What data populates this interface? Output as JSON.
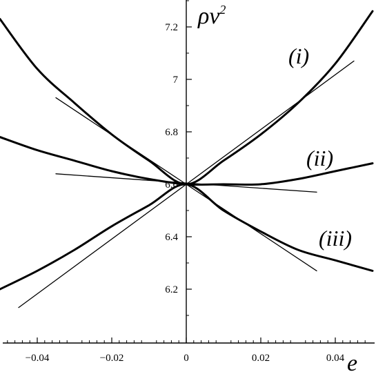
{
  "chart_data": {
    "type": "line",
    "xlabel": "e",
    "ylabel": "ρv",
    "ylabel_superscript": "2",
    "xlim": [
      -0.05,
      0.05
    ],
    "ylim": [
      6.0,
      7.3
    ],
    "x_ticks": [
      -0.04,
      -0.02,
      0,
      0.02,
      0.04
    ],
    "x_tick_labels": [
      "−0.04",
      "−0.02",
      "0",
      "0.02",
      "0.04"
    ],
    "y_ticks": [
      6.2,
      6.4,
      6.6,
      6.8,
      7,
      7.2
    ],
    "y_tick_labels": [
      "6.2",
      "6.4",
      "6.6",
      "6.8",
      "7",
      "7.2"
    ],
    "grid": false,
    "series": [
      {
        "label": "(i)",
        "style": "thick",
        "x": [
          -0.05,
          -0.04,
          -0.03,
          -0.02,
          -0.01,
          0,
          0.01,
          0.02,
          0.03,
          0.04,
          0.05
        ],
        "y": [
          7.23,
          7.04,
          6.91,
          6.79,
          6.69,
          6.6,
          6.69,
          6.79,
          6.91,
          7.06,
          7.26
        ]
      },
      {
        "label": "(ii)",
        "style": "thick",
        "x": [
          -0.05,
          -0.04,
          -0.03,
          -0.02,
          -0.01,
          0,
          0.01,
          0.02,
          0.03,
          0.04,
          0.05
        ],
        "y": [
          6.78,
          6.73,
          6.69,
          6.65,
          6.62,
          6.6,
          6.6,
          6.6,
          6.62,
          6.65,
          6.68
        ]
      },
      {
        "label": "(iii)",
        "style": "thick",
        "x": [
          -0.05,
          -0.04,
          -0.03,
          -0.02,
          -0.01,
          0,
          0.01,
          0.02,
          0.03,
          0.04,
          0.05
        ],
        "y": [
          6.2,
          6.27,
          6.35,
          6.44,
          6.52,
          6.6,
          6.5,
          6.42,
          6.35,
          6.31,
          6.27
        ]
      },
      {
        "style": "thin",
        "x": [
          -0.035,
          0,
          0.045
        ],
        "y": [
          6.93,
          6.6,
          7.07
        ]
      },
      {
        "style": "thin",
        "x": [
          -0.035,
          0.035
        ],
        "y": [
          6.64,
          6.57
        ]
      },
      {
        "style": "thin",
        "x": [
          -0.045,
          0,
          0.035
        ],
        "y": [
          6.13,
          6.6,
          6.27
        ]
      }
    ]
  }
}
